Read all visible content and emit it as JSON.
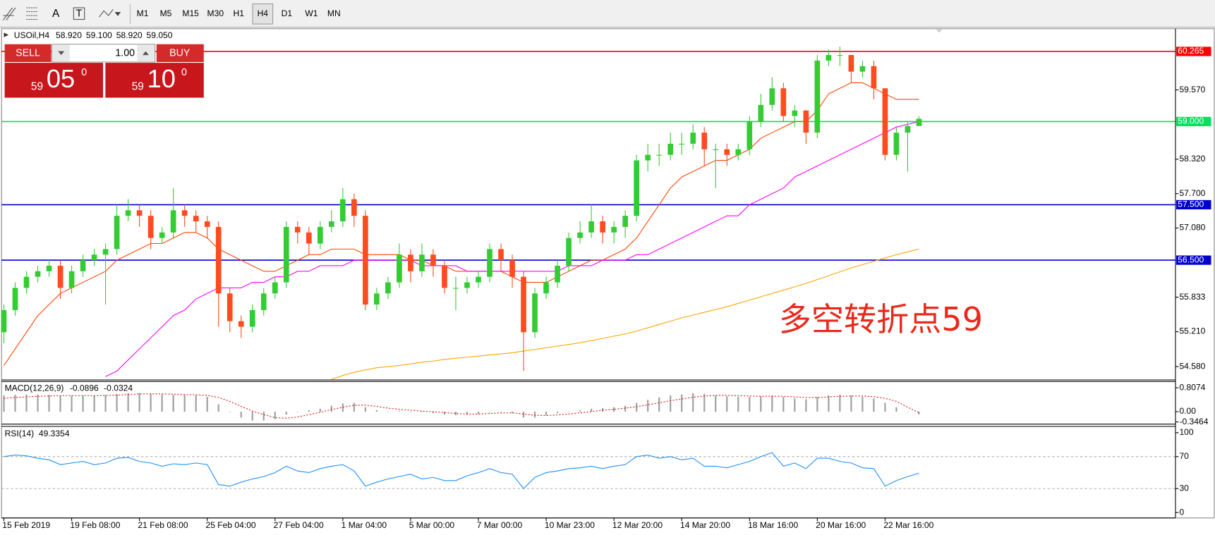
{
  "toolbar": {
    "tools": [
      "A",
      "T"
    ],
    "timeframes": [
      "M1",
      "M5",
      "M15",
      "M30",
      "H1",
      "H4",
      "D1",
      "W1",
      "MN"
    ]
  },
  "trade_panel": {
    "sell": "SELL",
    "buy": "BUY",
    "lots": "1.00",
    "bid": {
      "big": "59",
      "main": "05",
      "small": "0"
    },
    "ask": {
      "big": "59",
      "main": "10",
      "small": "0"
    }
  },
  "chart_data": [
    {
      "type": "candlestick",
      "title": "USOil,H4",
      "ohlc_labels": [
        "58.920",
        "59.100",
        "58.920",
        "59.050"
      ],
      "annotation": "多空转折点59",
      "up_color": "#33cc33",
      "down_color": "#ff4b1f",
      "categories": [
        "15 Feb 2019",
        null,
        null,
        null,
        null,
        null,
        "19 Feb 08:00",
        null,
        null,
        null,
        null,
        null,
        "21 Feb 08:00",
        null,
        null,
        null,
        null,
        null,
        "25 Feb 04:00",
        null,
        null,
        null,
        null,
        null,
        "27 Feb 04:00",
        null,
        null,
        null,
        null,
        null,
        "1 Mar 04:00",
        null,
        null,
        null,
        null,
        null,
        "5 Mar 00:00",
        null,
        null,
        null,
        null,
        null,
        "7 Mar 00:00",
        null,
        null,
        null,
        null,
        null,
        "10 Mar 23:00",
        null,
        null,
        null,
        null,
        null,
        "12 Mar 20:00",
        null,
        null,
        null,
        null,
        null,
        "14 Mar 20:00",
        null,
        null,
        null,
        null,
        null,
        "18 Mar 16:00",
        null,
        null,
        null,
        null,
        null,
        "20 Mar 16:00",
        null,
        null,
        null,
        null,
        null,
        "22 Mar 16:00",
        null,
        null,
        null
      ],
      "open": [
        55.2,
        55.6,
        56.0,
        56.2,
        56.3,
        56.4,
        56.0,
        56.3,
        56.5,
        56.6,
        56.7,
        57.3,
        57.4,
        57.3,
        56.9,
        57.0,
        57.4,
        57.3,
        57.2,
        57.1,
        55.9,
        55.4,
        55.3,
        55.6,
        55.9,
        56.1,
        57.1,
        57.0,
        56.8,
        57.1,
        57.2,
        57.6,
        57.3,
        55.7,
        55.9,
        56.1,
        56.6,
        56.3,
        56.6,
        56.4,
        56.0,
        56.0,
        56.1,
        56.2,
        56.7,
        56.5,
        56.2,
        55.2,
        55.9,
        56.1,
        56.4,
        56.9,
        57.0,
        57.2,
        57.0,
        57.1,
        57.3,
        58.3,
        58.4,
        58.4,
        58.6,
        58.6,
        58.8,
        58.5,
        58.5,
        58.4,
        58.5,
        59.0,
        59.3,
        59.6,
        59.1,
        59.2,
        58.8,
        60.1,
        60.2,
        60.2,
        59.9,
        60.0,
        59.6,
        58.4,
        58.8,
        58.92
      ],
      "high": [
        55.7,
        56.1,
        56.3,
        56.4,
        56.5,
        56.5,
        56.4,
        56.6,
        56.7,
        56.8,
        57.5,
        57.6,
        57.5,
        57.4,
        57.1,
        57.8,
        57.5,
        57.4,
        57.3,
        57.2,
        56.0,
        55.5,
        55.7,
        56.0,
        56.2,
        57.2,
        57.2,
        57.1,
        57.2,
        57.4,
        57.8,
        57.7,
        57.4,
        56.0,
        56.2,
        56.8,
        56.7,
        56.8,
        56.7,
        56.5,
        56.2,
        56.2,
        56.3,
        56.8,
        56.8,
        56.6,
        56.3,
        56.0,
        56.2,
        56.5,
        57.0,
        57.2,
        57.5,
        57.3,
        57.2,
        57.4,
        58.4,
        58.6,
        58.6,
        58.8,
        58.8,
        58.95,
        58.9,
        58.6,
        58.6,
        58.6,
        59.1,
        59.5,
        59.8,
        59.7,
        59.3,
        59.2,
        60.2,
        60.3,
        60.35,
        60.2,
        60.1,
        60.1,
        59.6,
        58.9,
        59.0,
        59.1
      ],
      "low": [
        55.0,
        55.5,
        55.9,
        56.1,
        56.2,
        55.8,
        55.9,
        56.2,
        56.4,
        55.7,
        56.6,
        57.2,
        57.1,
        56.7,
        56.8,
        56.9,
        57.1,
        57.0,
        56.9,
        55.3,
        55.2,
        55.1,
        55.2,
        55.5,
        55.8,
        56.0,
        56.8,
        56.6,
        56.7,
        57.0,
        57.1,
        57.1,
        55.6,
        55.6,
        55.8,
        56.0,
        56.1,
        56.2,
        56.2,
        55.9,
        55.6,
        55.9,
        56.0,
        56.1,
        56.3,
        56.0,
        54.5,
        55.1,
        55.8,
        56.0,
        56.3,
        56.8,
        56.9,
        56.8,
        56.8,
        56.9,
        57.2,
        58.1,
        58.2,
        58.3,
        58.4,
        58.5,
        58.2,
        57.8,
        58.2,
        58.3,
        58.4,
        58.9,
        59.2,
        59.0,
        58.9,
        58.6,
        58.7,
        60.0,
        60.0,
        59.7,
        59.8,
        59.4,
        58.3,
        58.3,
        58.1,
        58.92
      ],
      "close": [
        55.6,
        56.0,
        56.2,
        56.3,
        56.4,
        56.0,
        56.3,
        56.5,
        56.6,
        56.7,
        57.3,
        57.4,
        57.3,
        56.9,
        57.0,
        57.4,
        57.3,
        57.2,
        57.1,
        55.9,
        55.4,
        55.3,
        55.6,
        55.9,
        56.1,
        57.1,
        57.0,
        56.8,
        57.1,
        57.2,
        57.6,
        57.3,
        55.7,
        55.9,
        56.1,
        56.6,
        56.3,
        56.6,
        56.4,
        56.0,
        56.0,
        56.1,
        56.2,
        56.7,
        56.5,
        56.2,
        55.2,
        55.9,
        56.1,
        56.4,
        56.9,
        57.0,
        57.2,
        57.0,
        57.1,
        57.3,
        58.3,
        58.4,
        58.4,
        58.6,
        58.6,
        58.8,
        58.5,
        58.5,
        58.4,
        58.5,
        59.0,
        59.3,
        59.6,
        59.1,
        59.2,
        58.8,
        60.1,
        60.2,
        60.2,
        59.9,
        60.0,
        59.6,
        58.4,
        58.8,
        58.92,
        59.05
      ],
      "series": [
        {
          "color": "#ff4500",
          "values": [
            54.6,
            54.9,
            55.2,
            55.5,
            55.7,
            55.9,
            56.0,
            56.1,
            56.2,
            56.3,
            56.5,
            56.6,
            56.7,
            56.8,
            56.8,
            56.9,
            57.0,
            57.0,
            56.9,
            56.7,
            56.6,
            56.5,
            56.4,
            56.3,
            56.3,
            56.4,
            56.5,
            56.6,
            56.6,
            56.7,
            56.7,
            56.7,
            56.6,
            56.6,
            56.6,
            56.6,
            56.5,
            56.5,
            56.4,
            56.4,
            56.3,
            56.3,
            56.3,
            56.3,
            56.3,
            56.2,
            56.1,
            56.1,
            56.1,
            56.2,
            56.3,
            56.4,
            56.5,
            56.5,
            56.6,
            56.7,
            56.9,
            57.2,
            57.5,
            57.8,
            58.0,
            58.1,
            58.2,
            58.3,
            58.3,
            58.4,
            58.5,
            58.7,
            58.8,
            58.9,
            59.0,
            59.0,
            59.2,
            59.5,
            59.6,
            59.7,
            59.7,
            59.6,
            59.5,
            59.4,
            59.4,
            59.4
          ]
        },
        {
          "color": "#ff00ff",
          "values": [
            null,
            null,
            null,
            null,
            null,
            null,
            null,
            null,
            null,
            54.4,
            54.5,
            54.7,
            54.9,
            55.1,
            55.3,
            55.5,
            55.6,
            55.8,
            55.9,
            56.0,
            56.0,
            56.0,
            56.1,
            56.1,
            56.2,
            56.2,
            56.3,
            56.3,
            56.4,
            56.4,
            56.4,
            56.5,
            56.5,
            56.5,
            56.5,
            56.5,
            56.5,
            56.4,
            56.4,
            56.4,
            56.4,
            56.3,
            56.3,
            56.3,
            56.3,
            56.3,
            56.3,
            56.3,
            56.3,
            56.3,
            56.4,
            56.4,
            56.4,
            56.5,
            56.5,
            56.5,
            56.6,
            56.6,
            56.7,
            56.8,
            56.9,
            57.0,
            57.1,
            57.2,
            57.3,
            57.3,
            57.5,
            57.6,
            57.7,
            57.8,
            58.0,
            58.1,
            58.2,
            58.3,
            58.4,
            58.5,
            58.6,
            58.7,
            58.8,
            58.9,
            58.95,
            59.0
          ]
        },
        {
          "color": "#ffa500",
          "values": [
            null,
            null,
            null,
            null,
            null,
            null,
            null,
            null,
            null,
            null,
            null,
            null,
            null,
            null,
            null,
            null,
            null,
            null,
            null,
            null,
            null,
            null,
            null,
            null,
            null,
            null,
            null,
            null,
            null,
            54.35,
            54.42,
            54.48,
            54.52,
            54.56,
            54.58,
            54.6,
            54.63,
            54.66,
            54.68,
            54.71,
            54.73,
            54.75,
            54.77,
            54.79,
            54.81,
            54.83,
            54.86,
            54.89,
            54.92,
            54.95,
            54.98,
            55.01,
            55.05,
            55.09,
            55.13,
            55.17,
            55.22,
            55.28,
            55.34,
            55.4,
            55.46,
            55.51,
            55.56,
            55.61,
            55.66,
            55.72,
            55.78,
            55.84,
            55.9,
            55.96,
            56.02,
            56.08,
            56.15,
            56.22,
            56.29,
            56.36,
            56.42,
            56.48,
            56.54,
            56.6,
            56.65,
            56.7
          ]
        }
      ],
      "levels": [
        {
          "value": 60.265,
          "label": "60.265",
          "color": "#ff0000"
        },
        {
          "value": 59.0,
          "label": "59.000",
          "color": "#00e060"
        },
        {
          "value": 57.5,
          "label": "57.500",
          "color": "#0000cc"
        },
        {
          "value": 56.5,
          "label": "56.500",
          "color": "#0000cc"
        }
      ],
      "ylim": [
        54.34,
        60.675
      ],
      "yticks": [
        {
          "value": 59.57,
          "label": "59.570"
        },
        {
          "value": 58.32,
          "label": "58.320"
        },
        {
          "value": 57.7,
          "label": "57.700"
        },
        {
          "value": 57.08,
          "label": "57.080"
        },
        {
          "value": 55.833,
          "label": "55.833"
        },
        {
          "value": 55.21,
          "label": "55.210"
        },
        {
          "value": 54.58,
          "label": "54.580"
        }
      ]
    },
    {
      "type": "macd",
      "title": "MACD(12,26,9)",
      "legend_values": [
        "-0.0896",
        "-0.0324"
      ],
      "series": [
        {
          "color": "#a0a0a0",
          "values": [
            0.55,
            0.57,
            0.58,
            0.58,
            0.57,
            0.55,
            0.54,
            0.54,
            0.55,
            0.56,
            0.6,
            0.62,
            0.63,
            0.6,
            0.58,
            0.57,
            0.56,
            0.55,
            0.5,
            0.25,
            0.0,
            -0.2,
            -0.3,
            -0.3,
            -0.25,
            -0.1,
            0.0,
            0.05,
            0.1,
            0.2,
            0.28,
            0.3,
            0.15,
            0.05,
            0.0,
            0.02,
            0.0,
            -0.02,
            -0.05,
            -0.1,
            -0.12,
            -0.1,
            -0.08,
            0.0,
            0.0,
            -0.05,
            -0.2,
            -0.2,
            -0.12,
            -0.05,
            0.0,
            0.05,
            0.1,
            0.12,
            0.15,
            0.2,
            0.3,
            0.4,
            0.48,
            0.55,
            0.58,
            0.62,
            0.6,
            0.55,
            0.52,
            0.5,
            0.5,
            0.52,
            0.55,
            0.5,
            0.45,
            0.42,
            0.5,
            0.55,
            0.57,
            0.55,
            0.5,
            0.45,
            0.3,
            0.15,
            0.0,
            -0.0896
          ]
        },
        {
          "color": "#e02020",
          "values": [
            0.45,
            0.48,
            0.5,
            0.52,
            0.53,
            0.54,
            0.54,
            0.54,
            0.54,
            0.55,
            0.56,
            0.58,
            0.6,
            0.6,
            0.6,
            0.59,
            0.58,
            0.57,
            0.55,
            0.48,
            0.35,
            0.18,
            0.02,
            -0.1,
            -0.2,
            -0.22,
            -0.18,
            -0.1,
            -0.02,
            0.07,
            0.15,
            0.22,
            0.22,
            0.18,
            0.12,
            0.08,
            0.05,
            0.02,
            0.0,
            -0.03,
            -0.06,
            -0.08,
            -0.08,
            -0.06,
            -0.04,
            -0.04,
            -0.08,
            -0.12,
            -0.13,
            -0.11,
            -0.08,
            -0.04,
            0.0,
            0.05,
            0.08,
            0.12,
            0.17,
            0.23,
            0.3,
            0.37,
            0.43,
            0.49,
            0.53,
            0.55,
            0.55,
            0.54,
            0.53,
            0.52,
            0.52,
            0.52,
            0.5,
            0.48,
            0.48,
            0.5,
            0.52,
            0.53,
            0.53,
            0.51,
            0.45,
            0.35,
            0.15,
            -0.0324
          ]
        }
      ],
      "ylim": [
        -0.42,
        1.02
      ],
      "yticks": [
        0.8074,
        {
          "value": 0,
          "label": "0.00"
        },
        -0.3464
      ]
    },
    {
      "type": "line",
      "title": "RSI(14)",
      "legend_values": [
        "49.3354"
      ],
      "color": "#1e90ff",
      "values": [
        70,
        72,
        71,
        68,
        66,
        60,
        62,
        64,
        60,
        62,
        68,
        69,
        64,
        62,
        58,
        61,
        60,
        62,
        60,
        35,
        33,
        38,
        42,
        45,
        50,
        58,
        52,
        50,
        55,
        58,
        60,
        52,
        33,
        38,
        42,
        45,
        48,
        42,
        44,
        40,
        40,
        46,
        50,
        55,
        50,
        48,
        30,
        44,
        50,
        52,
        55,
        56,
        58,
        55,
        58,
        60,
        70,
        72,
        68,
        70,
        66,
        68,
        58,
        58,
        56,
        60,
        64,
        70,
        75,
        58,
        62,
        55,
        68,
        68,
        64,
        62,
        56,
        55,
        33,
        40,
        45,
        49.3354
      ],
      "levels": [
        70,
        30
      ],
      "ylim": [
        -6.8,
        107.8
      ],
      "yticks": [
        100,
        70,
        30,
        0
      ]
    }
  ]
}
